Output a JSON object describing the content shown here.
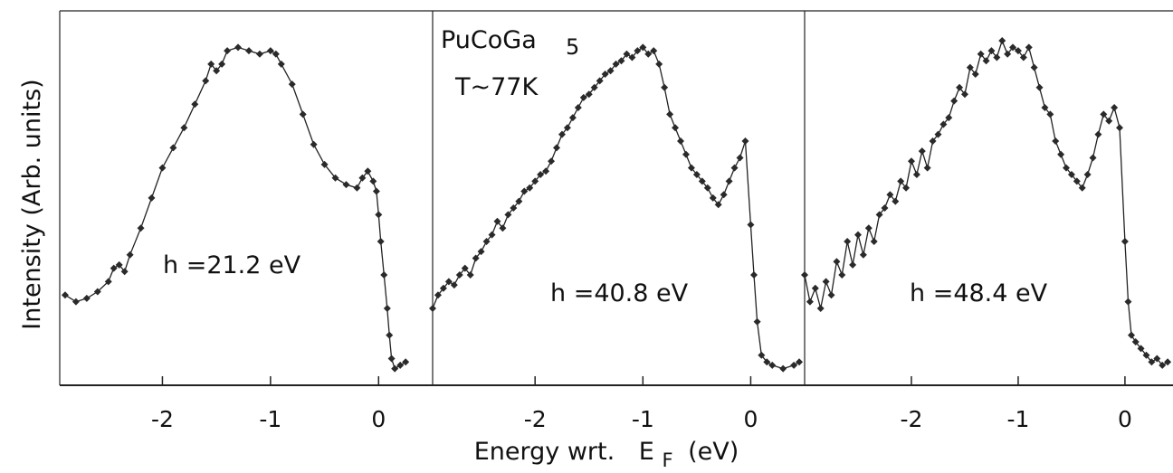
{
  "chart_data": [
    {
      "type": "line",
      "annotation": "h  =21.2 eV",
      "xlim": [
        -2.95,
        0.5
      ],
      "ylim": [
        0,
        1
      ],
      "xticks": [
        "-2",
        "-1",
        "0"
      ],
      "x": [
        -2.9,
        -2.8,
        -2.7,
        -2.6,
        -2.5,
        -2.45,
        -2.4,
        -2.35,
        -2.3,
        -2.2,
        -2.1,
        -2.0,
        -1.9,
        -1.8,
        -1.7,
        -1.6,
        -1.55,
        -1.5,
        -1.45,
        -1.4,
        -1.3,
        -1.2,
        -1.1,
        -1.0,
        -0.95,
        -0.9,
        -0.8,
        -0.7,
        -0.6,
        -0.5,
        -0.4,
        -0.3,
        -0.2,
        -0.15,
        -0.1,
        -0.05,
        -0.02,
        0.0,
        0.02,
        0.05,
        0.08,
        0.1,
        0.12,
        0.15,
        0.2,
        0.25
      ],
      "values": [
        0.24,
        0.22,
        0.23,
        0.25,
        0.28,
        0.32,
        0.33,
        0.31,
        0.36,
        0.44,
        0.53,
        0.62,
        0.68,
        0.74,
        0.81,
        0.88,
        0.93,
        0.91,
        0.93,
        0.97,
        0.98,
        0.97,
        0.96,
        0.97,
        0.96,
        0.93,
        0.87,
        0.78,
        0.69,
        0.63,
        0.59,
        0.57,
        0.56,
        0.59,
        0.61,
        0.58,
        0.55,
        0.48,
        0.4,
        0.3,
        0.2,
        0.12,
        0.05,
        0.02,
        0.03,
        0.04
      ]
    },
    {
      "type": "line",
      "annotation": "h  =40.8 eV",
      "title_lines": [
        "PuCoGa",
        "5",
        "T~77K"
      ],
      "xlim": [
        -2.95,
        0.5
      ],
      "ylim": [
        0,
        1
      ],
      "xticks": [
        "-2",
        "-1",
        "0"
      ],
      "x": [
        -2.95,
        -2.9,
        -2.85,
        -2.8,
        -2.75,
        -2.7,
        -2.65,
        -2.6,
        -2.55,
        -2.5,
        -2.45,
        -2.4,
        -2.35,
        -2.3,
        -2.25,
        -2.2,
        -2.15,
        -2.1,
        -2.05,
        -2.0,
        -1.95,
        -1.9,
        -1.85,
        -1.8,
        -1.75,
        -1.7,
        -1.65,
        -1.6,
        -1.55,
        -1.5,
        -1.45,
        -1.4,
        -1.35,
        -1.3,
        -1.25,
        -1.2,
        -1.15,
        -1.1,
        -1.05,
        -1.0,
        -0.95,
        -0.9,
        -0.85,
        -0.8,
        -0.75,
        -0.7,
        -0.65,
        -0.6,
        -0.55,
        -0.5,
        -0.45,
        -0.4,
        -0.35,
        -0.3,
        -0.25,
        -0.2,
        -0.15,
        -0.1,
        -0.05,
        0.0,
        0.03,
        0.06,
        0.1,
        0.15,
        0.2,
        0.3,
        0.4,
        0.45
      ],
      "values": [
        0.2,
        0.24,
        0.26,
        0.28,
        0.27,
        0.3,
        0.32,
        0.3,
        0.35,
        0.37,
        0.4,
        0.42,
        0.46,
        0.44,
        0.48,
        0.5,
        0.52,
        0.55,
        0.56,
        0.58,
        0.6,
        0.61,
        0.64,
        0.68,
        0.72,
        0.74,
        0.77,
        0.8,
        0.83,
        0.84,
        0.86,
        0.88,
        0.9,
        0.91,
        0.93,
        0.94,
        0.96,
        0.95,
        0.97,
        0.98,
        0.96,
        0.97,
        0.93,
        0.86,
        0.78,
        0.74,
        0.7,
        0.66,
        0.62,
        0.6,
        0.58,
        0.56,
        0.53,
        0.51,
        0.54,
        0.58,
        0.62,
        0.65,
        0.7,
        0.45,
        0.3,
        0.16,
        0.06,
        0.04,
        0.03,
        0.02,
        0.03,
        0.04
      ]
    },
    {
      "type": "line",
      "annotation": "h  =48.4 eV",
      "xlim": [
        -3.0,
        0.45
      ],
      "ylim": [
        0,
        1
      ],
      "xticks": [
        "-2",
        "-1",
        "0"
      ],
      "x": [
        -3.0,
        -2.95,
        -2.9,
        -2.85,
        -2.8,
        -2.75,
        -2.7,
        -2.65,
        -2.6,
        -2.55,
        -2.5,
        -2.45,
        -2.4,
        -2.35,
        -2.3,
        -2.25,
        -2.2,
        -2.15,
        -2.1,
        -2.05,
        -2.0,
        -1.95,
        -1.9,
        -1.85,
        -1.8,
        -1.75,
        -1.7,
        -1.65,
        -1.6,
        -1.55,
        -1.5,
        -1.45,
        -1.4,
        -1.35,
        -1.3,
        -1.25,
        -1.2,
        -1.15,
        -1.1,
        -1.05,
        -1.0,
        -0.95,
        -0.9,
        -0.85,
        -0.8,
        -0.75,
        -0.7,
        -0.65,
        -0.6,
        -0.55,
        -0.5,
        -0.45,
        -0.4,
        -0.35,
        -0.3,
        -0.25,
        -0.2,
        -0.15,
        -0.1,
        -0.05,
        0.0,
        0.03,
        0.06,
        0.1,
        0.15,
        0.2,
        0.25,
        0.3,
        0.35,
        0.4
      ],
      "values": [
        0.3,
        0.22,
        0.26,
        0.2,
        0.28,
        0.24,
        0.34,
        0.3,
        0.4,
        0.33,
        0.42,
        0.36,
        0.44,
        0.4,
        0.48,
        0.5,
        0.54,
        0.52,
        0.58,
        0.56,
        0.64,
        0.6,
        0.67,
        0.62,
        0.7,
        0.72,
        0.75,
        0.77,
        0.82,
        0.86,
        0.84,
        0.92,
        0.9,
        0.96,
        0.94,
        0.97,
        0.95,
        1.0,
        0.96,
        0.98,
        0.97,
        0.95,
        0.98,
        0.92,
        0.86,
        0.8,
        0.78,
        0.7,
        0.66,
        0.62,
        0.6,
        0.58,
        0.56,
        0.6,
        0.65,
        0.72,
        0.78,
        0.76,
        0.8,
        0.74,
        0.4,
        0.22,
        0.12,
        0.1,
        0.08,
        0.06,
        0.04,
        0.05,
        0.03,
        0.04
      ]
    }
  ],
  "axes": {
    "ylabel": "Intensity (Arb. units)",
    "xlabel_main": "Energy wrt.",
    "xlabel_e": "E",
    "xlabel_sub": "F",
    "xlabel_unit": "(eV)"
  }
}
